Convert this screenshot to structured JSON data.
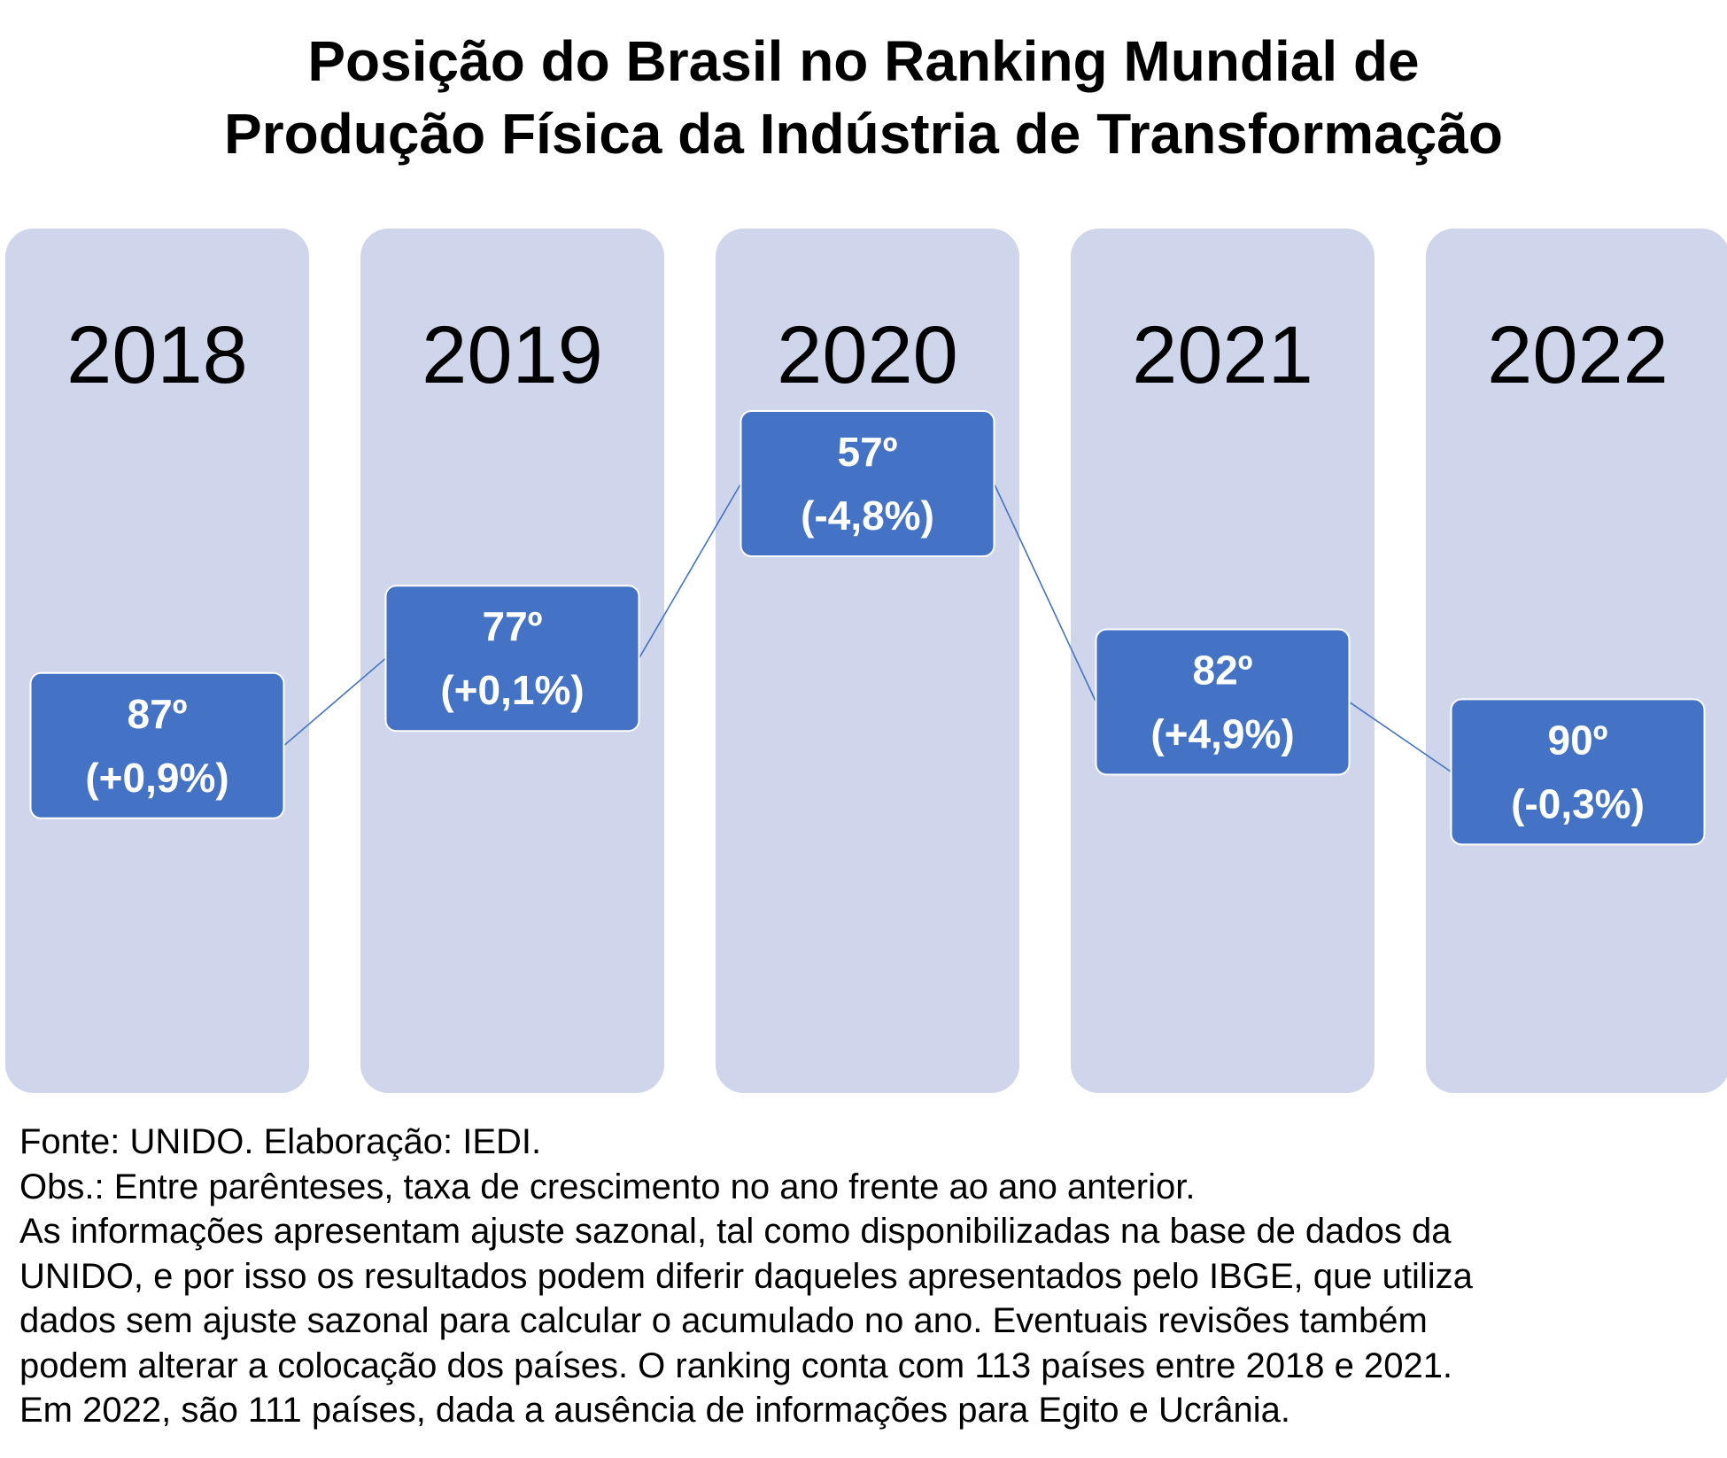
{
  "title": {
    "line1": "Posição do Brasil no Ranking Mundial de",
    "line2": "Produção Física da Indústria de Transformação"
  },
  "chart_data": {
    "type": "line",
    "title": "Posição do Brasil no Ranking Mundial de Produção Física da Indústria de Transformação",
    "categories": [
      "2018",
      "2019",
      "2020",
      "2021",
      "2022"
    ],
    "rank_labels": [
      "87º",
      "77º",
      "57º",
      "82º",
      "90º"
    ],
    "rank_values": [
      87,
      77,
      57,
      82,
      90
    ],
    "growth_labels": [
      "(+0,9%)",
      "(+0,1%)",
      "(-4,8%)",
      "(+4,9%)",
      "(-0,3%)"
    ],
    "growth_values": [
      0.9,
      0.1,
      -4.8,
      4.9,
      -0.3
    ],
    "y_reversed": true,
    "colors": {
      "column_bg": "#cfd5ea",
      "box_fill": "#4472c4",
      "box_border": "#ffffff",
      "line": "#4472c4",
      "box_text": "#ffffff"
    }
  },
  "notes": [
    "Fonte: UNIDO. Elaboração: IEDI.",
    "Obs.: Entre parênteses, taxa de crescimento no ano frente ao ano anterior.",
    "As informações apresentam ajuste sazonal, tal como disponibilizadas na base de dados da",
    "UNIDO, e por isso os resultados podem diferir daqueles apresentados pelo IBGE, que utiliza",
    "dados sem ajuste sazonal para calcular o acumulado no ano. Eventuais revisões também",
    "podem alterar a colocação dos países. O ranking conta com 113 países entre 2018 e 2021.",
    "Em 2022, são 111 países, dada a ausência de informações para Egito e Ucrânia."
  ]
}
